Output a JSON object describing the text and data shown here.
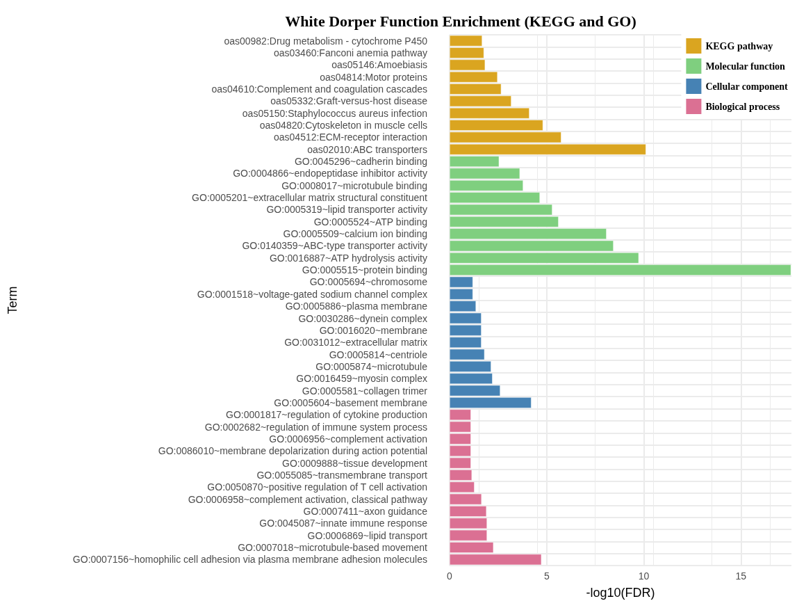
{
  "chart_data": {
    "type": "bar",
    "orientation": "horizontal",
    "title": "White Dorper Function Enrichment (KEGG and GO)",
    "xlabel": "-log10(FDR)",
    "ylabel": "Term",
    "categories": [
      "oas00982:Drug metabolism - cytochrome P450",
      "oas03460:Fanconi anemia pathway",
      "oas05146:Amoebiasis",
      "oas04814:Motor proteins",
      "oas04610:Complement and coagulation cascades",
      "oas05332:Graft-versus-host disease",
      "oas05150:Staphylococcus aureus infection",
      "oas04820:Cytoskeleton in muscle cells",
      "oas04512:ECM-receptor interaction",
      "oas02010:ABC transporters",
      "GO:0045296~cadherin binding",
      "GO:0004866~endopeptidase inhibitor activity",
      "GO:0008017~microtubule binding",
      "GO:0005201~extracellular matrix structural constituent",
      "GO:0005319~lipid transporter activity",
      "GO:0005524~ATP binding",
      "GO:0005509~calcium ion binding",
      "GO:0140359~ABC-type transporter activity",
      "GO:0016887~ATP hydrolysis activity",
      "GO:0005515~protein binding",
      "GO:0005694~chromosome",
      "GO:0001518~voltage-gated sodium channel complex",
      "GO:0005886~plasma membrane",
      "GO:0030286~dynein complex",
      "GO:0016020~membrane",
      "GO:0031012~extracellular matrix",
      "GO:0005814~centriole",
      "GO:0005874~microtubule",
      "GO:0016459~myosin complex",
      "GO:0005581~collagen trimer",
      "GO:0005604~basement membrane",
      "GO:0001817~regulation of cytokine production",
      "GO:0002682~regulation of immune system process",
      "GO:0006956~complement activation",
      "GO:0086010~membrane depolarization during action potential",
      "GO:0009888~tissue development",
      "GO:0055085~transmembrane transport",
      "GO:0050870~positive regulation of T cell activation",
      "GO:0006958~complement activation, classical pathway",
      "GO:0007411~axon guidance",
      "GO:0045087~innate immune response",
      "GO:0006869~lipid transport",
      "GO:0007018~microtubule-based movement",
      "GO:0007156~homophilic cell adhesion via plasma membrane adhesion molecules"
    ],
    "series": [
      {
        "name": "KEGG pathway",
        "color": "#daa520",
        "values": [
          1.68,
          1.77,
          1.83,
          2.47,
          2.66,
          3.18,
          4.11,
          4.81,
          5.75,
          10.11,
          null,
          null,
          null,
          null,
          null,
          null,
          null,
          null,
          null,
          null,
          null,
          null,
          null,
          null,
          null,
          null,
          null,
          null,
          null,
          null,
          null,
          null,
          null,
          null,
          null,
          null,
          null,
          null,
          null,
          null,
          null,
          null,
          null,
          null
        ]
      },
      {
        "name": "Molecular function",
        "color": "#7fcf7f",
        "values": [
          null,
          null,
          null,
          null,
          null,
          null,
          null,
          null,
          null,
          null,
          2.55,
          3.62,
          3.79,
          4.65,
          5.29,
          5.61,
          8.08,
          8.44,
          9.74,
          17.58,
          null,
          null,
          null,
          null,
          null,
          null,
          null,
          null,
          null,
          null,
          null,
          null,
          null,
          null,
          null,
          null,
          null,
          null,
          null,
          null,
          null,
          null,
          null,
          null
        ]
      },
      {
        "name": "Cellular component",
        "color": "#4682b4",
        "values": [
          null,
          null,
          null,
          null,
          null,
          null,
          null,
          null,
          null,
          null,
          null,
          null,
          null,
          null,
          null,
          null,
          null,
          null,
          null,
          null,
          1.2,
          1.2,
          1.36,
          1.64,
          1.64,
          1.64,
          1.8,
          2.14,
          2.21,
          2.61,
          4.21,
          null,
          null,
          null,
          null,
          null,
          null,
          null,
          null,
          null,
          null,
          null,
          null,
          null
        ]
      },
      {
        "name": "Biological process",
        "color": "#db7093",
        "values": [
          null,
          null,
          null,
          null,
          null,
          null,
          null,
          null,
          null,
          null,
          null,
          null,
          null,
          null,
          null,
          null,
          null,
          null,
          null,
          null,
          null,
          null,
          null,
          null,
          null,
          null,
          null,
          null,
          null,
          null,
          null,
          1.1,
          1.1,
          1.1,
          1.1,
          1.1,
          1.15,
          1.28,
          1.65,
          1.9,
          1.93,
          1.93,
          2.26,
          4.73
        ]
      }
    ],
    "xlim": [
      0,
      17.6
    ],
    "xticks": [
      0,
      5,
      10,
      15
    ],
    "grid": true,
    "legend": "top right"
  }
}
